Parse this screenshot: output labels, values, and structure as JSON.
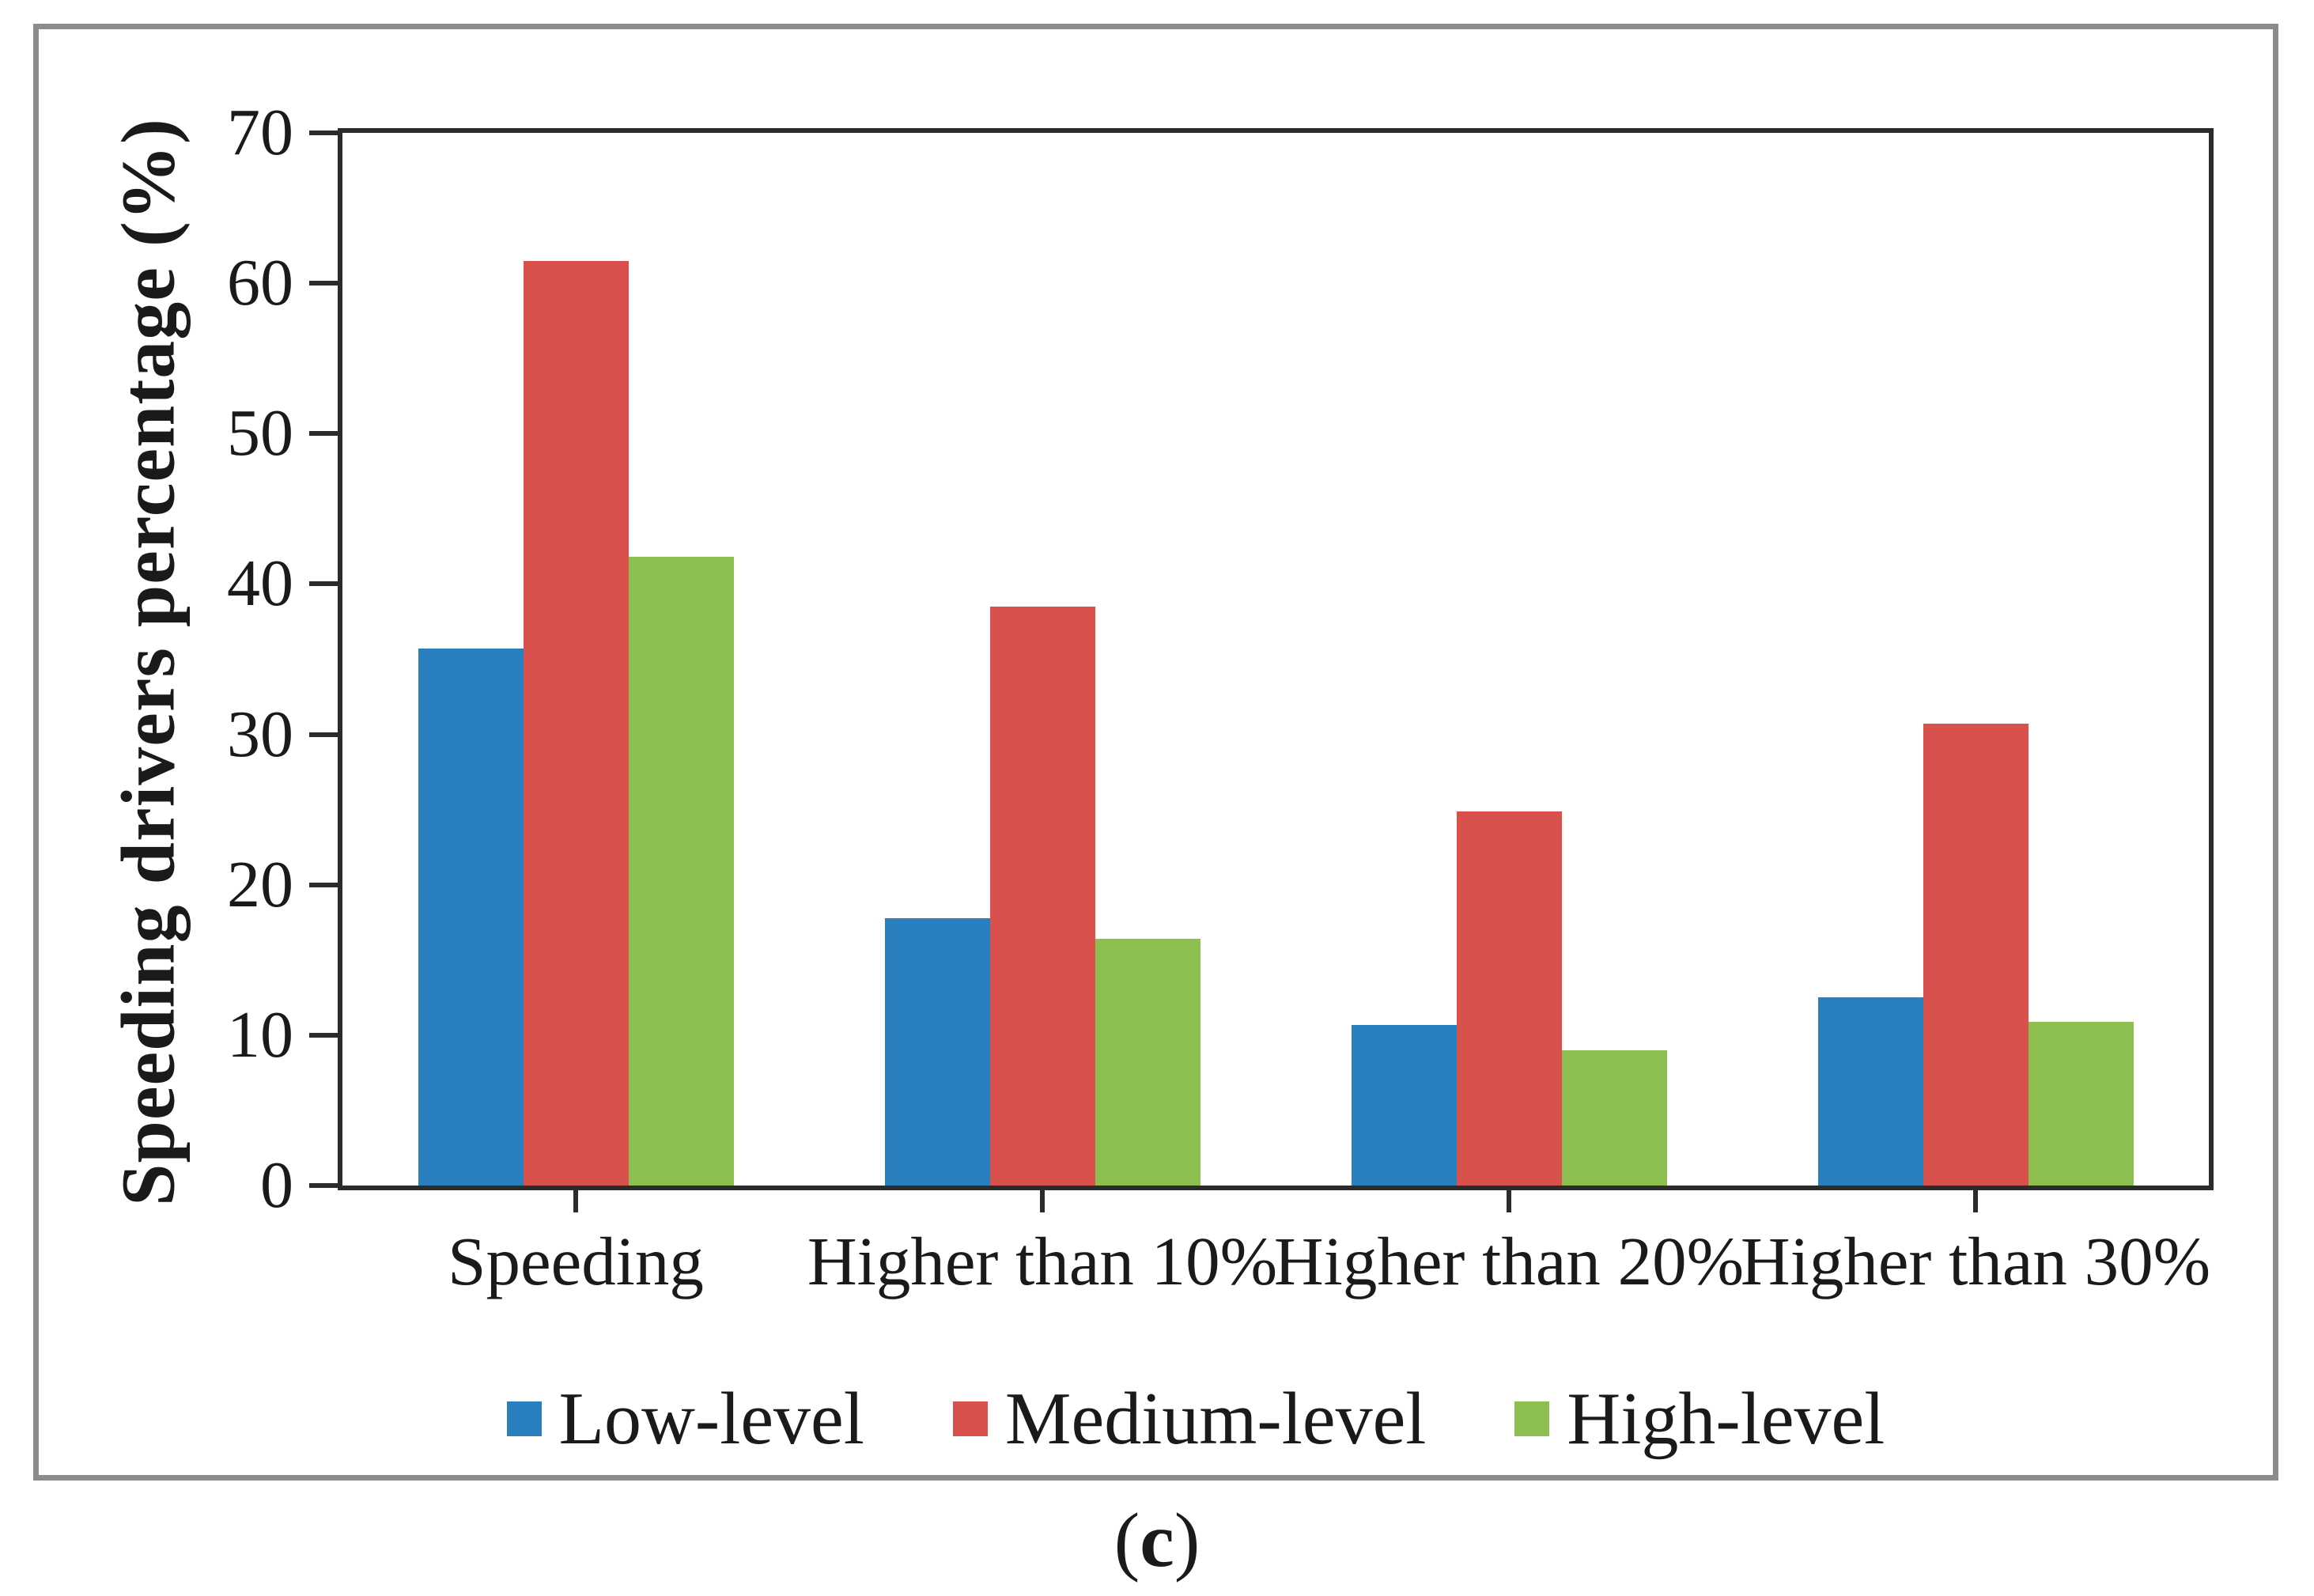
{
  "figure": {
    "caption": {
      "open": "(",
      "letter": "c",
      "close": ")"
    },
    "border_color": "#8c8c8c",
    "axis_color": "#2b2b2b"
  },
  "chart_data": {
    "type": "bar",
    "title": "",
    "xlabel": "",
    "ylabel": "Speeding drivers percentage (%)",
    "ylim": [
      0,
      70
    ],
    "yticks": [
      0,
      10,
      20,
      30,
      40,
      50,
      60,
      70
    ],
    "grid": false,
    "legend_position": "bottom",
    "categories": [
      "Speeding",
      "Higher than 10%",
      "Higher than 20%",
      "Higher than 30%"
    ],
    "series": [
      {
        "name": "Low-level",
        "color": "#2a7fbf",
        "values": [
          35.7,
          17.8,
          10.7,
          12.5
        ]
      },
      {
        "name": "Medium-level",
        "color": "#d9514d",
        "values": [
          61.5,
          38.5,
          24.9,
          30.7
        ]
      },
      {
        "name": "High-level",
        "color": "#8cbf4f",
        "values": [
          41.8,
          16.4,
          9.0,
          10.9
        ]
      }
    ]
  }
}
